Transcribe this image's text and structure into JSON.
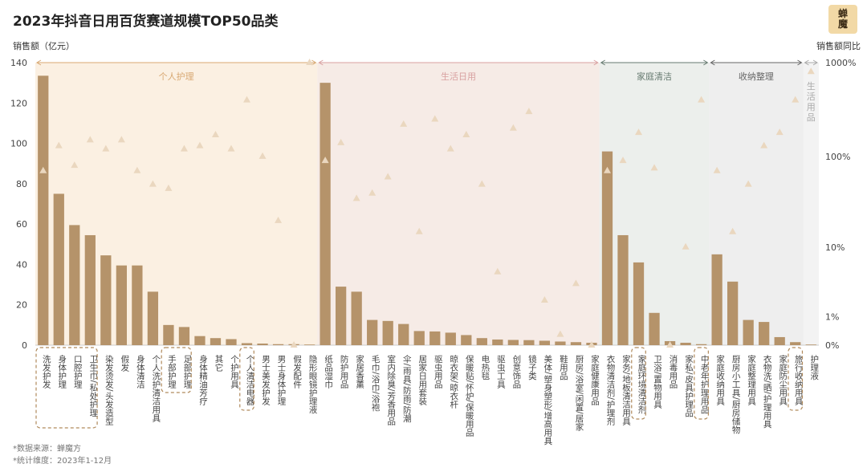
{
  "title": "2023年抖音日用百货赛道规模TOP50品类",
  "logo": [
    "蝉",
    "魔"
  ],
  "footer": {
    "source_prefix": "*数据来源：蝉魔方",
    "source_brand": "蝉魔方",
    "period": "*统计维度：2023年1-12月"
  },
  "colors": {
    "bar": "#b5936a",
    "triangle": "#ead7bf",
    "highlight_border": "#b08a5c",
    "segment_personal": "#fbf0e2",
    "segment_daily": "#f6ebe6",
    "segment_cleaning": "#ecefec",
    "segment_storage": "#eeeeee",
    "segment_other": "#f3f3f3"
  },
  "chart_data": {
    "type": "bar",
    "title": "2023年抖音日用百货赛道规模TOP50品类",
    "ylabel": "销售额（亿元）",
    "y2label": "销售额同比",
    "ylim": [
      0,
      140
    ],
    "yticks": [
      0,
      20,
      40,
      60,
      80,
      100,
      120,
      140
    ],
    "y2scale": "log",
    "y2ticks": [
      "0%",
      "1%",
      "10%",
      "100%",
      "1000%"
    ],
    "segments": [
      {
        "name": "个人护理",
        "count": 18
      },
      {
        "name": "生活日用",
        "count": 18
      },
      {
        "name": "家庭清洁",
        "count": 7
      },
      {
        "name": "收纳整理",
        "count": 6
      },
      {
        "name": "生活用品",
        "count": 1
      }
    ],
    "categories": [
      "洗发护发",
      "身体护理",
      "口腔护理",
      "卫生巾/私处护理",
      "染发烫发/头发造型",
      "假发",
      "身体清洁",
      "个人洗护清洁用具",
      "手部护理",
      "足部护理",
      "身体精油芳疗",
      "其它",
      "个护用具",
      "个人清洁电器",
      "男士美发护发",
      "男士身体护理",
      "假发配件",
      "隐形眼镜护理液",
      "纸品湿巾",
      "防护用品",
      "家居香薰",
      "毛巾/浴巾/浴袍",
      "室内除臭/芳香用品",
      "伞/雨具/防雨/防潮",
      "居家日用套装",
      "驱虫用品",
      "晾衣架/晾衣杆",
      "保暖贴/怀炉/保暖用品",
      "电热毯",
      "驱虫工具",
      "创意饰品",
      "镜子类",
      "美体/塑身塑形/增高用具",
      "鞋用品",
      "厨房/浴室/闲置/居家",
      "家庭健康用品",
      "衣物清洁剂/护理剂",
      "家务/地板清洁用具",
      "家庭环境清洁剂",
      "卫浴/置物用具",
      "消毒用品",
      "家私/皮具护理品",
      "中老年护理用品",
      "家庭收纳用具",
      "厨房小工具/厨房储物",
      "家庭整理用具",
      "衣物洗/晒/护理用具",
      "家庭防尘用具",
      "旅行收纳用具",
      "护理液"
    ],
    "sales": [
      133.5,
      75,
      59.5,
      54.5,
      44.5,
      39.5,
      39.5,
      26.5,
      10,
      9,
      4.5,
      3.5,
      3,
      1,
      0.8,
      0.5,
      0.5,
      0.3,
      130,
      29,
      26.5,
      12.5,
      12,
      10.5,
      7,
      6.8,
      6.2,
      5,
      3.5,
      2.8,
      2.6,
      2.5,
      2.2,
      1.8,
      1.5,
      1.2,
      96,
      54.5,
      41,
      16,
      2,
      1.2,
      0.5,
      45,
      31.5,
      12.5,
      11.5,
      4,
      1.5,
      0.3
    ],
    "yoy_percent": [
      70,
      130,
      80,
      150,
      120,
      150,
      70,
      50,
      45,
      120,
      130,
      170,
      120,
      400,
      100,
      20,
      0,
      1000,
      90,
      140,
      35,
      40,
      60,
      220,
      15,
      250,
      120,
      170,
      50,
      5,
      200,
      300,
      2,
      0.3,
      3.5,
      0,
      70,
      90,
      180,
      75,
      0,
      10,
      400,
      70,
      15,
      50,
      130,
      180,
      400,
      800
    ],
    "highlighted": [
      "洗发护发",
      "身体护理",
      "口腔护理",
      "卫生巾/私处护理",
      "手部护理",
      "足部护理",
      "个人清洁电器",
      "家庭环境清洁剂",
      "中老年护理用品",
      "旅行收纳用具"
    ]
  }
}
